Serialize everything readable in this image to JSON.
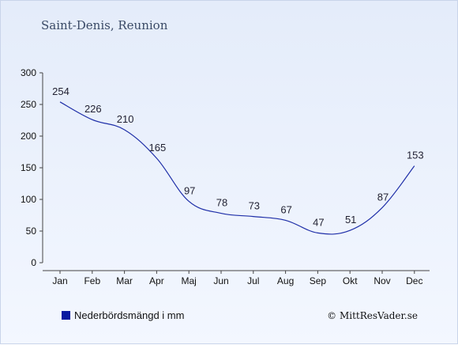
{
  "chart_data": {
    "type": "line",
    "title": "Saint-Denis, Reunion",
    "categories": [
      "Jan",
      "Feb",
      "Mar",
      "Apr",
      "Maj",
      "Jun",
      "Jul",
      "Aug",
      "Sep",
      "Okt",
      "Nov",
      "Dec"
    ],
    "series": [
      {
        "name": "Nederbördsmängd i mm",
        "values": [
          254,
          226,
          210,
          165,
          97,
          78,
          73,
          67,
          47,
          51,
          87,
          153
        ]
      }
    ],
    "y_ticks": [
      "0",
      "50",
      "100",
      "150",
      "200",
      "250",
      "300"
    ],
    "ylim": [
      0,
      300
    ],
    "grid": false,
    "legend_position": "bottom-left",
    "line_color": "#1f2fa8",
    "legend_marker_color": "#0a1aa0"
  },
  "copyright": "© MittResVader.se"
}
